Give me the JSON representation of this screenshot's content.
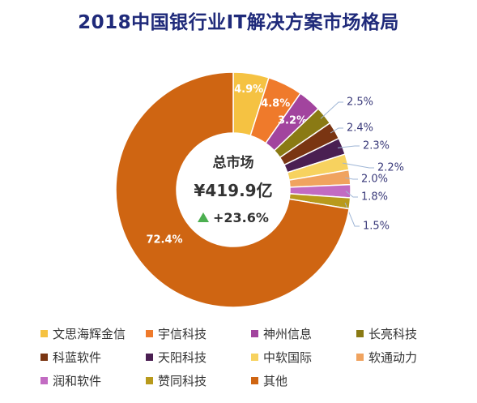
{
  "title": "2018中国银行业IT解决方案市场格局",
  "center": {
    "label": "总市场",
    "total": "¥419.9亿",
    "growth": "+23.6%",
    "growth_color": "#4caf50"
  },
  "chart_data": {
    "type": "pie",
    "title": "2018中国银行业IT解决方案市场格局",
    "donut": true,
    "slices": [
      {
        "label": "文思海辉金信",
        "value": 4.9,
        "value_text": "4.9%",
        "color": "#f5c242"
      },
      {
        "label": "宇信科技",
        "value": 4.8,
        "value_text": "4.8%",
        "color": "#ef7a2b"
      },
      {
        "label": "神州信息",
        "value": 3.2,
        "value_text": "3.2%",
        "color": "#a2449e"
      },
      {
        "label": "长亮科技",
        "value": 2.5,
        "value_text": "2.5%",
        "color": "#8a7a14"
      },
      {
        "label": "科蓝软件",
        "value": 2.4,
        "value_text": "2.4%",
        "color": "#7a3512"
      },
      {
        "label": "天阳科技",
        "value": 2.3,
        "value_text": "2.3%",
        "color": "#4a1f52"
      },
      {
        "label": "中软国际",
        "value": 2.2,
        "value_text": "2.2%",
        "color": "#f7d25f"
      },
      {
        "label": "软通动力",
        "value": 2.0,
        "value_text": "2.0%",
        "color": "#f0a35f"
      },
      {
        "label": "润和软件",
        "value": 1.8,
        "value_text": "1.8%",
        "color": "#c26bc2"
      },
      {
        "label": "赞同科技",
        "value": 1.5,
        "value_text": "1.5%",
        "color": "#b89a1c"
      },
      {
        "label": "其他",
        "value": 72.4,
        "value_text": "72.4%",
        "color": "#cf6512"
      }
    ]
  },
  "legend_rows": [
    [
      0,
      1,
      2,
      3
    ],
    [
      4,
      5,
      6,
      7
    ],
    [
      8,
      9,
      10
    ]
  ]
}
